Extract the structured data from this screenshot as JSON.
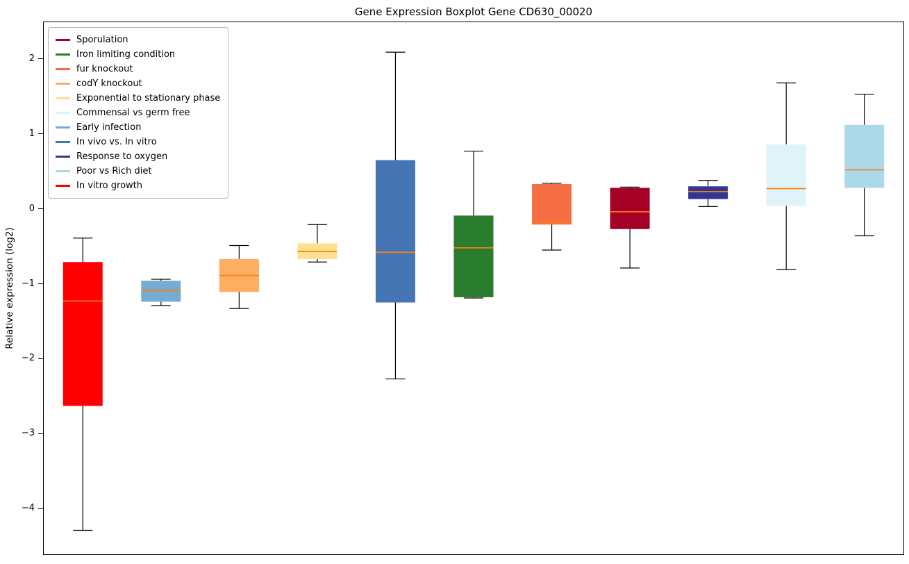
{
  "chart_data": {
    "type": "boxplot",
    "title": "Gene Expression Boxplot Gene CD630_00020",
    "ylabel": "Relative expression (log2)",
    "ylim": [
      -4.6,
      2.5
    ],
    "yticks": [
      2,
      1,
      0,
      -1,
      -2,
      -3,
      -4
    ],
    "grid": false,
    "legend_position": "upper-left",
    "median_color": "#ff7f0e",
    "whisker_color": "#000000",
    "legend": [
      {
        "label": "Sporulation",
        "color": "#a50026"
      },
      {
        "label": "Iron limiting condition",
        "color": "#2a7d2f"
      },
      {
        "label": "fur knockout",
        "color": "#f46d43"
      },
      {
        "label": "codY knockout",
        "color": "#fdae61"
      },
      {
        "label": "Exponential to stationary phase",
        "color": "#fee090"
      },
      {
        "label": "Commensal vs germ free",
        "color": "#e0f3f8"
      },
      {
        "label": "Early infection",
        "color": "#74add1"
      },
      {
        "label": "In vivo vs. In vitro",
        "color": "#4575b4"
      },
      {
        "label": "Response to oxygen",
        "color": "#313695"
      },
      {
        "label": "Poor vs Rich diet",
        "color": "#abd9e9"
      },
      {
        "label": "In vitro growth",
        "color": "#ff0000"
      }
    ],
    "boxes": [
      {
        "label": "In vitro growth",
        "color": "#ff0000",
        "whislo": -4.28,
        "q1": -2.62,
        "med": -1.22,
        "q3": -0.7,
        "whishi": -0.38
      },
      {
        "label": "Early infection",
        "color": "#74add1",
        "whislo": -1.28,
        "q1": -1.23,
        "med": -1.08,
        "q3": -0.95,
        "whishi": -0.93
      },
      {
        "label": "codY knockout",
        "color": "#fdae61",
        "whislo": -1.32,
        "q1": -1.1,
        "med": -0.88,
        "q3": -0.66,
        "whishi": -0.48
      },
      {
        "label": "Exponential to stationary phase",
        "color": "#fee090",
        "whislo": -0.7,
        "q1": -0.66,
        "med": -0.56,
        "q3": -0.45,
        "whishi": -0.2
      },
      {
        "label": "In vivo vs. In vitro",
        "color": "#4575b4",
        "whislo": -2.26,
        "q1": -1.24,
        "med": -0.57,
        "q3": 0.66,
        "whishi": 2.1
      },
      {
        "label": "Iron limiting condition",
        "color": "#2a7d2f",
        "whislo": -1.18,
        "q1": -1.17,
        "med": -0.51,
        "q3": -0.08,
        "whishi": 0.78
      },
      {
        "label": "fur knockout",
        "color": "#f46d43",
        "whislo": -0.54,
        "q1": -0.2,
        "med": -0.17,
        "q3": 0.34,
        "whishi": 0.35
      },
      {
        "label": "Sporulation",
        "color": "#a50026",
        "whislo": -0.78,
        "q1": -0.26,
        "med": -0.03,
        "q3": 0.29,
        "whishi": 0.3
      },
      {
        "label": "Response to oxygen",
        "color": "#313695",
        "whislo": 0.04,
        "q1": 0.14,
        "med": 0.24,
        "q3": 0.31,
        "whishi": 0.39
      },
      {
        "label": "Commensal vs germ free",
        "color": "#e0f3f8",
        "whislo": -0.8,
        "q1": 0.05,
        "med": 0.28,
        "q3": 0.87,
        "whishi": 1.69
      },
      {
        "label": "Poor vs Rich diet",
        "color": "#abd9e9",
        "whislo": -0.35,
        "q1": 0.29,
        "med": 0.53,
        "q3": 1.13,
        "whishi": 1.54
      }
    ]
  }
}
